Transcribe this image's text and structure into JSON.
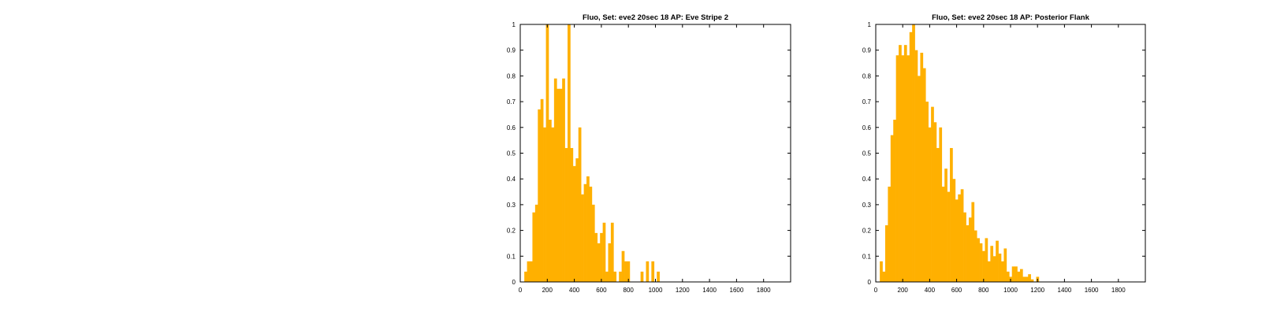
{
  "colors": {
    "bar": "#FFB000",
    "axis": "#000000",
    "background": "#FFFFFF"
  },
  "chart_data": [
    {
      "type": "bar",
      "title": "Fluo, Set: eve2 20sec 18 AP: Eve Stripe 2",
      "xlabel": "",
      "ylabel": "",
      "xlim": [
        0,
        2000
      ],
      "ylim": [
        0,
        1
      ],
      "bin_width": 20,
      "xticks": [
        "0",
        "200",
        "400",
        "600",
        "800",
        "1000",
        "1200",
        "1400",
        "1600",
        "1800"
      ],
      "yticks": [
        "0",
        "0.1",
        "0.2",
        "0.3",
        "0.4",
        "0.5",
        "0.6",
        "0.7",
        "0.8",
        "0.9",
        "1"
      ],
      "bins": [
        [
          20,
          0.0
        ],
        [
          40,
          0.04
        ],
        [
          60,
          0.08
        ],
        [
          80,
          0.08
        ],
        [
          100,
          0.27
        ],
        [
          120,
          0.3
        ],
        [
          140,
          0.67
        ],
        [
          160,
          0.71
        ],
        [
          180,
          0.6
        ],
        [
          200,
          1.0
        ],
        [
          220,
          0.63
        ],
        [
          240,
          0.6
        ],
        [
          260,
          0.79
        ],
        [
          280,
          0.75
        ],
        [
          300,
          0.75
        ],
        [
          320,
          0.79
        ],
        [
          340,
          0.52
        ],
        [
          360,
          1.0
        ],
        [
          380,
          0.52
        ],
        [
          400,
          0.45
        ],
        [
          420,
          0.48
        ],
        [
          440,
          0.6
        ],
        [
          460,
          0.34
        ],
        [
          480,
          0.38
        ],
        [
          500,
          0.41
        ],
        [
          520,
          0.37
        ],
        [
          540,
          0.3
        ],
        [
          560,
          0.19
        ],
        [
          580,
          0.15
        ],
        [
          600,
          0.19
        ],
        [
          620,
          0.23
        ],
        [
          640,
          0.04
        ],
        [
          660,
          0.15
        ],
        [
          680,
          0.23
        ],
        [
          700,
          0.04
        ],
        [
          720,
          0.0
        ],
        [
          740,
          0.04
        ],
        [
          760,
          0.12
        ],
        [
          780,
          0.08
        ],
        [
          800,
          0.08
        ],
        [
          820,
          0.0
        ],
        [
          840,
          0.0
        ],
        [
          860,
          0.0
        ],
        [
          880,
          0.0
        ],
        [
          900,
          0.04
        ],
        [
          920,
          0.0
        ],
        [
          940,
          0.08
        ],
        [
          960,
          0.0
        ],
        [
          980,
          0.08
        ],
        [
          1000,
          0.0
        ],
        [
          1020,
          0.04
        ],
        [
          1040,
          0.0
        ]
      ]
    },
    {
      "type": "bar",
      "title": "Fluo, Set: eve2 20sec 18 AP: Posterior Flank",
      "xlabel": "",
      "ylabel": "",
      "xlim": [
        0,
        2000
      ],
      "ylim": [
        0,
        1
      ],
      "bin_width": 20,
      "xticks": [
        "0",
        "200",
        "400",
        "600",
        "800",
        "1000",
        "1200",
        "1400",
        "1600",
        "1800"
      ],
      "yticks": [
        "0",
        "0.1",
        "0.2",
        "0.3",
        "0.4",
        "0.5",
        "0.6",
        "0.7",
        "0.8",
        "0.9",
        "1"
      ],
      "bins": [
        [
          20,
          0.0
        ],
        [
          40,
          0.08
        ],
        [
          60,
          0.04
        ],
        [
          80,
          0.22
        ],
        [
          100,
          0.37
        ],
        [
          120,
          0.57
        ],
        [
          140,
          0.63
        ],
        [
          160,
          0.88
        ],
        [
          180,
          0.92
        ],
        [
          200,
          0.88
        ],
        [
          220,
          0.92
        ],
        [
          240,
          0.88
        ],
        [
          260,
          0.97
        ],
        [
          280,
          1.0
        ],
        [
          300,
          0.9
        ],
        [
          320,
          0.8
        ],
        [
          340,
          0.89
        ],
        [
          360,
          0.83
        ],
        [
          380,
          0.7
        ],
        [
          400,
          0.6
        ],
        [
          420,
          0.68
        ],
        [
          440,
          0.62
        ],
        [
          460,
          0.52
        ],
        [
          480,
          0.6
        ],
        [
          500,
          0.37
        ],
        [
          520,
          0.44
        ],
        [
          540,
          0.35
        ],
        [
          560,
          0.52
        ],
        [
          580,
          0.4
        ],
        [
          600,
          0.32
        ],
        [
          620,
          0.34
        ],
        [
          640,
          0.36
        ],
        [
          660,
          0.27
        ],
        [
          680,
          0.22
        ],
        [
          700,
          0.25
        ],
        [
          720,
          0.31
        ],
        [
          740,
          0.2
        ],
        [
          760,
          0.17
        ],
        [
          780,
          0.15
        ],
        [
          800,
          0.12
        ],
        [
          820,
          0.17
        ],
        [
          840,
          0.08
        ],
        [
          860,
          0.14
        ],
        [
          880,
          0.1
        ],
        [
          900,
          0.16
        ],
        [
          920,
          0.11
        ],
        [
          940,
          0.08
        ],
        [
          960,
          0.13
        ],
        [
          980,
          0.04
        ],
        [
          1000,
          0.02
        ],
        [
          1020,
          0.06
        ],
        [
          1040,
          0.06
        ],
        [
          1060,
          0.04
        ],
        [
          1080,
          0.05
        ],
        [
          1100,
          0.02
        ],
        [
          1120,
          0.02
        ],
        [
          1140,
          0.03
        ],
        [
          1160,
          0.01
        ],
        [
          1180,
          0.0
        ],
        [
          1200,
          0.02
        ],
        [
          1220,
          0.0
        ],
        [
          1240,
          0.0
        ]
      ]
    }
  ]
}
